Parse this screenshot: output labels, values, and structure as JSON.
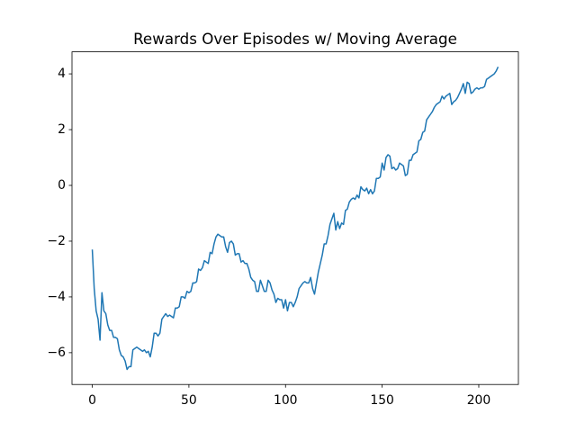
{
  "chart_data": {
    "type": "line",
    "title": "Rewards Over Episodes w/ Moving Average",
    "color": "#1f77b4",
    "x": [
      0,
      1,
      2,
      3,
      4,
      5,
      6,
      7,
      8,
      9,
      10,
      11,
      12,
      13,
      14,
      15,
      16,
      17,
      18,
      19,
      20,
      21,
      22,
      23,
      24,
      25,
      26,
      27,
      28,
      29,
      30,
      31,
      32,
      33,
      34,
      35,
      36,
      37,
      38,
      39,
      40,
      41,
      42,
      43,
      44,
      45,
      46,
      47,
      48,
      49,
      50,
      51,
      52,
      53,
      54,
      55,
      56,
      57,
      58,
      59,
      60,
      61,
      62,
      63,
      64,
      65,
      66,
      67,
      68,
      69,
      70,
      71,
      72,
      73,
      74,
      75,
      76,
      77,
      78,
      79,
      80,
      81,
      82,
      83,
      84,
      85,
      86,
      87,
      88,
      89,
      90,
      91,
      92,
      93,
      94,
      95,
      96,
      97,
      98,
      99,
      100,
      101,
      102,
      103,
      104,
      105,
      106,
      107,
      108,
      109,
      110,
      111,
      112,
      113,
      114,
      115,
      116,
      117,
      118,
      119,
      120,
      121,
      122,
      123,
      124,
      125,
      126,
      127,
      128,
      129,
      130,
      131,
      132,
      133,
      134,
      135,
      136,
      137,
      138,
      139,
      140,
      141,
      142,
      143,
      144,
      145,
      146,
      147,
      148,
      149,
      150,
      151,
      152,
      153,
      154,
      155,
      156,
      157,
      158,
      159,
      160,
      161,
      162,
      163,
      164,
      165,
      166,
      167,
      168,
      169,
      170,
      171,
      172,
      173,
      174,
      175,
      176,
      177,
      178,
      179,
      180,
      181,
      182,
      183,
      184,
      185,
      186,
      187,
      188,
      189,
      190,
      191,
      192,
      193,
      194,
      195,
      196,
      197,
      198,
      199,
      200,
      201,
      202,
      203,
      204,
      205,
      206,
      207,
      208,
      209,
      210
    ],
    "values": [
      -2.3,
      -3.7,
      -4.5,
      -4.8,
      -5.55,
      -3.85,
      -4.5,
      -4.6,
      -5.0,
      -5.2,
      -5.2,
      -5.45,
      -5.45,
      -5.5,
      -5.9,
      -6.1,
      -6.15,
      -6.3,
      -6.6,
      -6.5,
      -6.5,
      -5.9,
      -5.85,
      -5.8,
      -5.85,
      -5.9,
      -5.95,
      -5.9,
      -6.0,
      -5.95,
      -6.15,
      -5.8,
      -5.3,
      -5.3,
      -5.4,
      -5.3,
      -4.8,
      -4.7,
      -4.6,
      -4.7,
      -4.65,
      -4.7,
      -4.75,
      -4.4,
      -4.4,
      -4.35,
      -4.0,
      -4.0,
      -4.05,
      -3.8,
      -3.85,
      -3.8,
      -3.5,
      -3.5,
      -3.45,
      -3.0,
      -3.05,
      -2.95,
      -2.7,
      -2.75,
      -2.8,
      -2.4,
      -2.45,
      -2.1,
      -1.85,
      -1.75,
      -1.8,
      -1.85,
      -1.85,
      -2.2,
      -2.4,
      -2.05,
      -2.0,
      -2.1,
      -2.5,
      -2.45,
      -2.45,
      -2.75,
      -2.7,
      -2.8,
      -2.8,
      -3.0,
      -3.3,
      -3.4,
      -3.45,
      -3.8,
      -3.8,
      -3.4,
      -3.6,
      -3.8,
      -3.8,
      -3.4,
      -3.5,
      -3.75,
      -3.9,
      -4.2,
      -4.05,
      -4.1,
      -4.1,
      -4.4,
      -4.1,
      -4.5,
      -4.2,
      -4.2,
      -4.35,
      -4.2,
      -4.0,
      -3.7,
      -3.6,
      -3.5,
      -3.45,
      -3.5,
      -3.5,
      -3.3,
      -3.7,
      -3.9,
      -3.5,
      -3.1,
      -2.8,
      -2.5,
      -2.1,
      -2.1,
      -1.8,
      -1.4,
      -1.2,
      -1.0,
      -1.6,
      -1.3,
      -1.55,
      -1.35,
      -1.4,
      -0.9,
      -0.85,
      -0.6,
      -0.5,
      -0.45,
      -0.5,
      -0.35,
      -0.45,
      -0.05,
      -0.15,
      -0.2,
      -0.1,
      -0.3,
      -0.15,
      -0.3,
      -0.2,
      0.25,
      0.25,
      0.3,
      0.8,
      0.55,
      1.0,
      1.1,
      1.05,
      0.6,
      0.65,
      0.55,
      0.6,
      0.8,
      0.75,
      0.7,
      0.35,
      0.4,
      0.9,
      0.9,
      1.1,
      1.15,
      1.2,
      1.6,
      1.65,
      1.9,
      1.95,
      2.35,
      2.45,
      2.55,
      2.65,
      2.8,
      2.9,
      2.95,
      3.0,
      3.2,
      3.1,
      3.2,
      3.25,
      3.3,
      2.9,
      3.0,
      3.05,
      3.15,
      3.3,
      3.45,
      3.65,
      3.3,
      3.7,
      3.65,
      3.3,
      3.35,
      3.45,
      3.5,
      3.45,
      3.5,
      3.5,
      3.55,
      3.8,
      3.85,
      3.9,
      3.95,
      4.0,
      4.1,
      4.25
    ],
    "xlim": [
      -10.5,
      220.5
    ],
    "ylim": [
      -7.14,
      4.79
    ],
    "xticks": [
      0,
      50,
      100,
      150,
      200
    ],
    "yticks": [
      {
        "value": -6,
        "label": "−6"
      },
      {
        "value": -4,
        "label": "−4"
      },
      {
        "value": -2,
        "label": "−2"
      },
      0,
      2,
      4
    ]
  }
}
